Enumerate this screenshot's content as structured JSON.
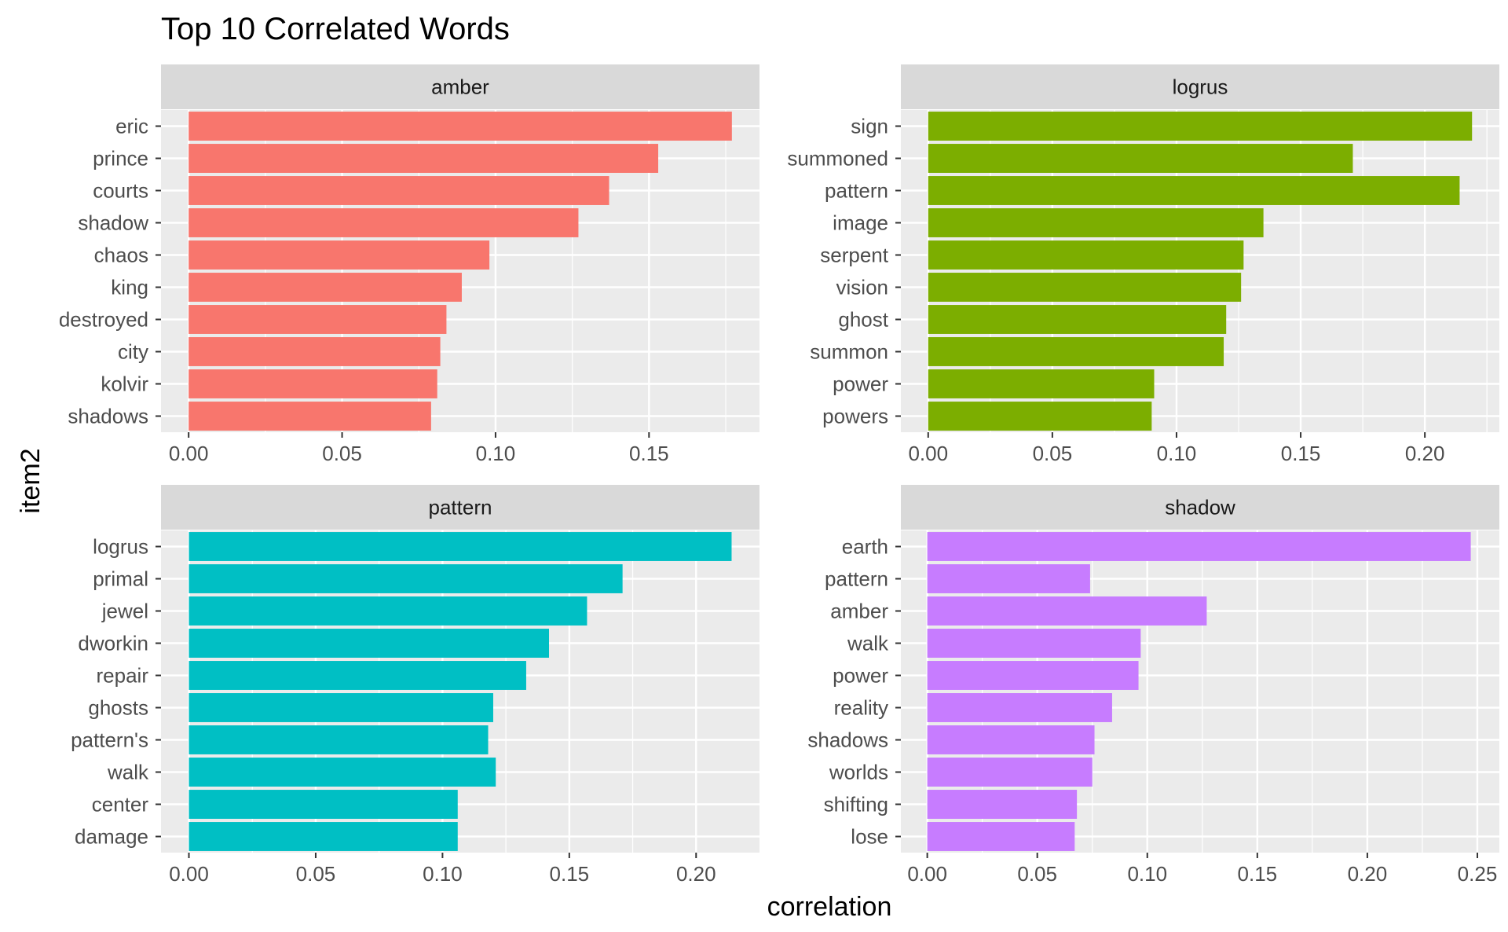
{
  "chart_data": {
    "type": "bar",
    "orientation": "horizontal",
    "title": "Top 10 Correlated Words",
    "xlabel": "correlation",
    "ylabel": "item2",
    "grid": true,
    "legend": "none",
    "facets": [
      {
        "name": "amber",
        "color": "#F8766D",
        "categories": [
          "eric",
          "prince",
          "courts",
          "shadow",
          "chaos",
          "king",
          "destroyed",
          "city",
          "kolvir",
          "shadows"
        ],
        "values": [
          0.177,
          0.153,
          0.137,
          0.127,
          0.098,
          0.089,
          0.084,
          0.082,
          0.081,
          0.079
        ],
        "xlim": [
          -0.009,
          0.186
        ],
        "ticks": [
          0.0,
          0.05,
          0.1,
          0.15
        ],
        "tick_labels": [
          "0.00",
          "0.05",
          "0.10",
          "0.15"
        ]
      },
      {
        "name": "logrus",
        "color": "#7CAE00",
        "categories": [
          "sign",
          "summoned",
          "pattern",
          "image",
          "serpent",
          "vision",
          "ghost",
          "summon",
          "power",
          "powers"
        ],
        "values": [
          0.219,
          0.171,
          0.214,
          0.135,
          0.127,
          0.126,
          0.12,
          0.119,
          0.091,
          0.09
        ],
        "xlim": [
          -0.011,
          0.23
        ],
        "ticks": [
          0.0,
          0.05,
          0.1,
          0.15,
          0.2
        ],
        "tick_labels": [
          "0.00",
          "0.05",
          "0.10",
          "0.15",
          "0.20"
        ]
      },
      {
        "name": "pattern",
        "color": "#00BFC4",
        "categories": [
          "logrus",
          "primal",
          "jewel",
          "dworkin",
          "repair",
          "ghosts",
          "pattern's",
          "walk",
          "center",
          "damage"
        ],
        "values": [
          0.214,
          0.171,
          0.157,
          0.142,
          0.133,
          0.12,
          0.118,
          0.121,
          0.106,
          0.106
        ],
        "xlim": [
          -0.011,
          0.225
        ],
        "ticks": [
          0.0,
          0.05,
          0.1,
          0.15,
          0.2
        ],
        "tick_labels": [
          "0.00",
          "0.05",
          "0.10",
          "0.15",
          "0.20"
        ]
      },
      {
        "name": "shadow",
        "color": "#C77CFF",
        "categories": [
          "earth",
          "pattern",
          "amber",
          "walk",
          "power",
          "reality",
          "shadows",
          "worlds",
          "shifting",
          "lose"
        ],
        "values": [
          0.247,
          0.074,
          0.127,
          0.097,
          0.096,
          0.084,
          0.076,
          0.075,
          0.068,
          0.067
        ],
        "xlim": [
          -0.012,
          0.26
        ],
        "ticks": [
          0.0,
          0.05,
          0.1,
          0.15,
          0.2,
          0.25
        ],
        "tick_labels": [
          "0.00",
          "0.05",
          "0.10",
          "0.15",
          "0.20",
          "0.25"
        ]
      }
    ]
  }
}
